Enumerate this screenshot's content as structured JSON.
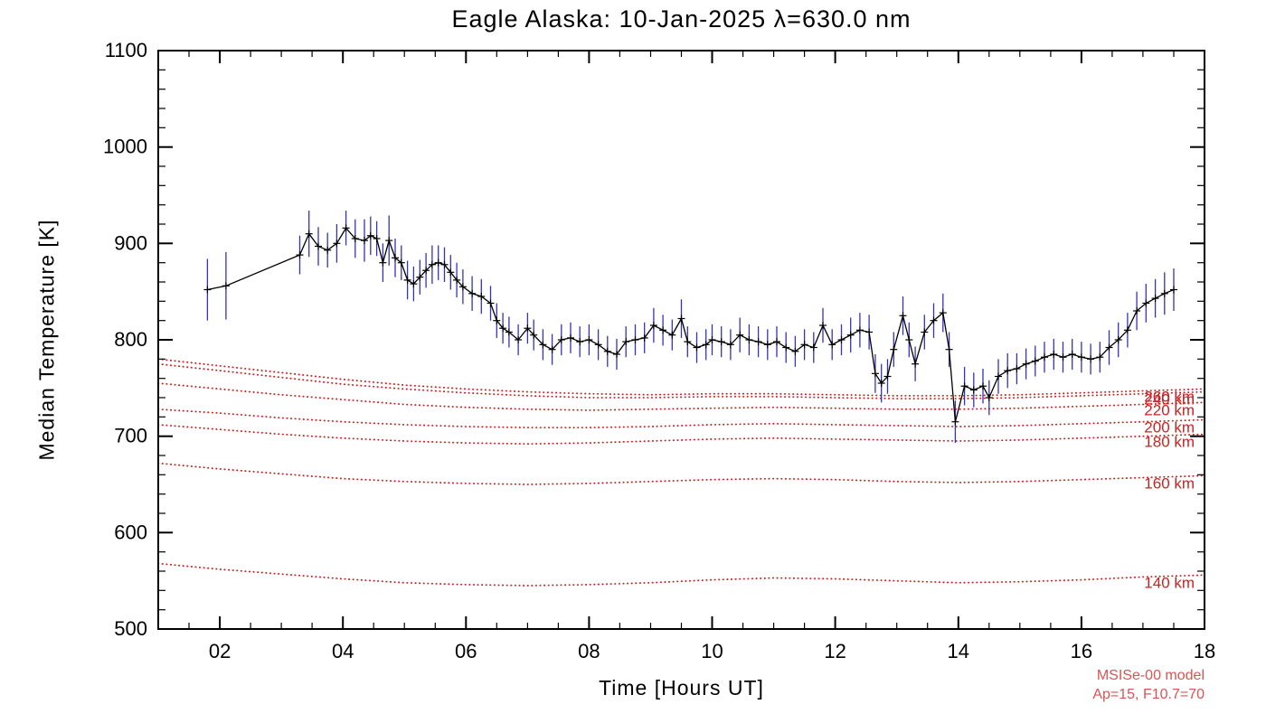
{
  "title": "Eagle Alaska: 10-Jan-2025 λ=630.0 nm",
  "axes": {
    "x_label": "Time [Hours UT]",
    "y_label": "Median Temperature [K]"
  },
  "annotations": {
    "model_line1": "MSISe-00 model",
    "model_line2": "Ap=15, F10.7=70"
  },
  "colors": {
    "axis": "#000000",
    "data_line": "#000000",
    "marker": "#000000",
    "error_bar": "#3333bb",
    "model_curve": "#cc2222",
    "model_label": "#cc2222",
    "annotation": "#d85555",
    "background": "#ffffff"
  },
  "chart_data": {
    "type": "line",
    "title": "Eagle Alaska: 10-Jan-2025 λ=630.0 nm",
    "xlabel": "Time [Hours UT]",
    "ylabel": "Median Temperature [K]",
    "xlim": [
      1,
      18
    ],
    "ylim": [
      500,
      1100
    ],
    "grid": false,
    "legend": "none",
    "x_major_ticks": [
      2,
      4,
      6,
      8,
      10,
      12,
      14,
      16,
      18
    ],
    "x_tick_labels": [
      "02",
      "04",
      "06",
      "08",
      "10",
      "12",
      "14",
      "16",
      "18"
    ],
    "x_minor_step": 0.5,
    "y_major_ticks": [
      500,
      600,
      700,
      800,
      900,
      1000,
      1100
    ],
    "y_tick_labels": [
      "500",
      "600",
      "700",
      "800",
      "900",
      "1000",
      "1100"
    ],
    "y_minor_step": 20,
    "series": {
      "name": "median-temperature-with-error-bars",
      "points_format": [
        "time_hours_ut",
        "temperature_K",
        "error_K"
      ],
      "points": [
        [
          1.8,
          852,
          32
        ],
        [
          2.1,
          856,
          35
        ],
        [
          3.3,
          888,
          20
        ],
        [
          3.45,
          910,
          24
        ],
        [
          3.6,
          897,
          20
        ],
        [
          3.75,
          893,
          18
        ],
        [
          3.9,
          900,
          20
        ],
        [
          4.05,
          916,
          18
        ],
        [
          4.2,
          905,
          20
        ],
        [
          4.35,
          903,
          22
        ],
        [
          4.45,
          908,
          20
        ],
        [
          4.55,
          905,
          18
        ],
        [
          4.65,
          880,
          20
        ],
        [
          4.75,
          903,
          26
        ],
        [
          4.85,
          885,
          20
        ],
        [
          4.95,
          880,
          18
        ],
        [
          5.05,
          862,
          20
        ],
        [
          5.15,
          858,
          18
        ],
        [
          5.25,
          865,
          18
        ],
        [
          5.35,
          872,
          18
        ],
        [
          5.45,
          878,
          20
        ],
        [
          5.55,
          880,
          18
        ],
        [
          5.65,
          878,
          18
        ],
        [
          5.75,
          870,
          18
        ],
        [
          5.85,
          862,
          18
        ],
        [
          5.95,
          855,
          18
        ],
        [
          6.1,
          848,
          18
        ],
        [
          6.25,
          845,
          18
        ],
        [
          6.4,
          838,
          18
        ],
        [
          6.5,
          820,
          18
        ],
        [
          6.6,
          812,
          16
        ],
        [
          6.7,
          808,
          16
        ],
        [
          6.85,
          800,
          16
        ],
        [
          7.0,
          812,
          16
        ],
        [
          7.1,
          805,
          16
        ],
        [
          7.25,
          795,
          16
        ],
        [
          7.4,
          790,
          16
        ],
        [
          7.55,
          800,
          16
        ],
        [
          7.7,
          802,
          16
        ],
        [
          7.85,
          798,
          16
        ],
        [
          8.0,
          800,
          16
        ],
        [
          8.15,
          795,
          16
        ],
        [
          8.3,
          788,
          16
        ],
        [
          8.45,
          785,
          16
        ],
        [
          8.6,
          798,
          16
        ],
        [
          8.75,
          800,
          16
        ],
        [
          8.9,
          802,
          16
        ],
        [
          9.05,
          815,
          18
        ],
        [
          9.2,
          810,
          16
        ],
        [
          9.35,
          805,
          16
        ],
        [
          9.5,
          822,
          20
        ],
        [
          9.6,
          798,
          16
        ],
        [
          9.75,
          792,
          16
        ],
        [
          9.9,
          795,
          16
        ],
        [
          10.0,
          800,
          16
        ],
        [
          10.15,
          798,
          16
        ],
        [
          10.3,
          795,
          16
        ],
        [
          10.45,
          805,
          18
        ],
        [
          10.6,
          800,
          16
        ],
        [
          10.75,
          798,
          16
        ],
        [
          10.9,
          795,
          16
        ],
        [
          11.05,
          798,
          16
        ],
        [
          11.2,
          792,
          16
        ],
        [
          11.35,
          788,
          16
        ],
        [
          11.5,
          795,
          16
        ],
        [
          11.65,
          792,
          16
        ],
        [
          11.8,
          815,
          18
        ],
        [
          11.95,
          795,
          16
        ],
        [
          12.1,
          800,
          16
        ],
        [
          12.25,
          805,
          18
        ],
        [
          12.4,
          810,
          18
        ],
        [
          12.55,
          808,
          18
        ],
        [
          12.65,
          765,
          20
        ],
        [
          12.75,
          755,
          20
        ],
        [
          12.85,
          762,
          18
        ],
        [
          12.95,
          790,
          18
        ],
        [
          13.1,
          825,
          20
        ],
        [
          13.2,
          800,
          18
        ],
        [
          13.3,
          775,
          18
        ],
        [
          13.45,
          808,
          18
        ],
        [
          13.6,
          820,
          18
        ],
        [
          13.75,
          828,
          20
        ],
        [
          13.85,
          790,
          18
        ],
        [
          13.95,
          715,
          22
        ],
        [
          14.1,
          752,
          20
        ],
        [
          14.25,
          748,
          18
        ],
        [
          14.4,
          752,
          18
        ],
        [
          14.5,
          740,
          18
        ],
        [
          14.65,
          762,
          18
        ],
        [
          14.8,
          768,
          18
        ],
        [
          14.95,
          770,
          16
        ],
        [
          15.1,
          775,
          16
        ],
        [
          15.25,
          778,
          16
        ],
        [
          15.4,
          782,
          16
        ],
        [
          15.55,
          785,
          16
        ],
        [
          15.7,
          782,
          16
        ],
        [
          15.85,
          785,
          16
        ],
        [
          16.0,
          782,
          16
        ],
        [
          16.15,
          780,
          16
        ],
        [
          16.3,
          782,
          16
        ],
        [
          16.45,
          792,
          18
        ],
        [
          16.6,
          800,
          18
        ],
        [
          16.75,
          810,
          18
        ],
        [
          16.9,
          830,
          20
        ],
        [
          17.05,
          838,
          20
        ],
        [
          17.2,
          843,
          20
        ],
        [
          17.35,
          848,
          22
        ],
        [
          17.5,
          852,
          22
        ]
      ]
    },
    "model_curves": {
      "description": "MSISe-00 model temperature at fixed altitudes (red dotted)",
      "x": [
        1,
        2,
        3,
        4,
        5,
        6,
        7,
        8,
        9,
        10,
        11,
        12,
        13,
        14,
        15,
        16,
        17,
        18
      ],
      "curves": [
        {
          "label": "140 km",
          "values": [
            568,
            562,
            557,
            552,
            548,
            546,
            545,
            546,
            548,
            551,
            553,
            552,
            550,
            548,
            549,
            551,
            554,
            556
          ]
        },
        {
          "label": "160 km",
          "values": [
            672,
            666,
            661,
            656,
            653,
            651,
            650,
            651,
            653,
            655,
            656,
            655,
            653,
            652,
            653,
            655,
            657,
            659
          ]
        },
        {
          "label": "180 km",
          "values": [
            712,
            707,
            702,
            698,
            695,
            693,
            692,
            693,
            695,
            697,
            698,
            697,
            696,
            695,
            696,
            698,
            700,
            702
          ]
        },
        {
          "label": "200 km",
          "values": [
            728,
            724,
            719,
            715,
            712,
            710,
            709,
            709,
            710,
            712,
            713,
            712,
            711,
            710,
            711,
            713,
            715,
            717
          ]
        },
        {
          "label": "220 km",
          "values": [
            755,
            749,
            743,
            738,
            733,
            730,
            728,
            727,
            728,
            729,
            730,
            729,
            728,
            728,
            729,
            731,
            733,
            735
          ]
        },
        {
          "label": "240 km",
          "values": [
            775,
            768,
            761,
            754,
            749,
            745,
            742,
            740,
            740,
            741,
            741,
            740,
            739,
            739,
            740,
            742,
            744,
            746
          ]
        },
        {
          "label": "260 km",
          "values": [
            780,
            773,
            766,
            759,
            753,
            749,
            746,
            744,
            743,
            744,
            744,
            743,
            742,
            742,
            743,
            745,
            747,
            749
          ]
        }
      ]
    }
  }
}
